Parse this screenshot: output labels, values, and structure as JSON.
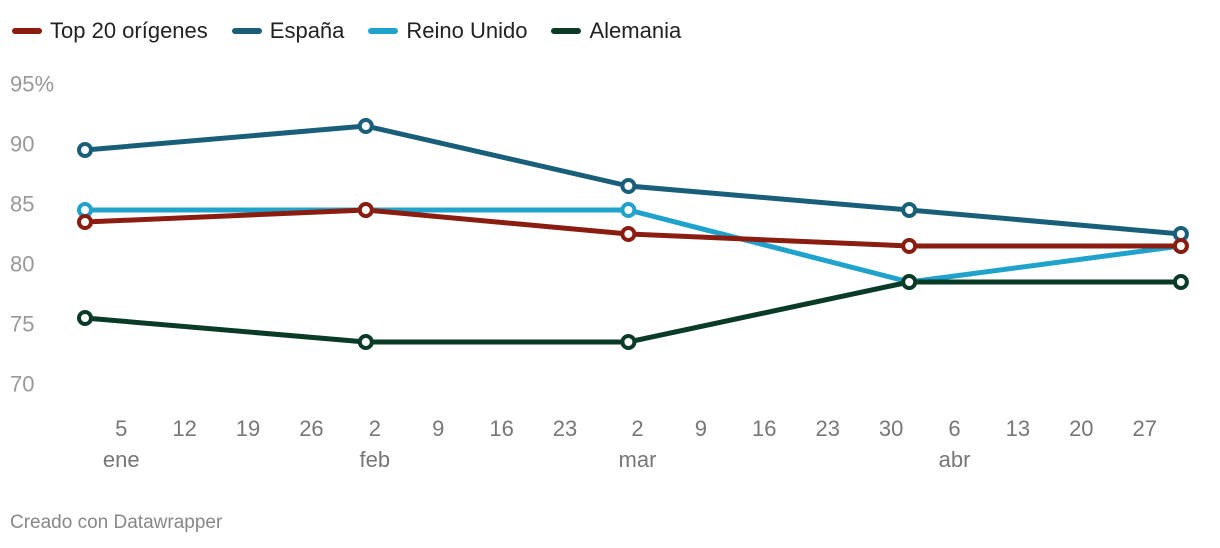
{
  "chart_data": {
    "type": "line",
    "xlabel": "",
    "ylabel": "",
    "ylim": [
      70,
      95
    ],
    "y_ticks": [
      95,
      90,
      85,
      80,
      75,
      70
    ],
    "y_tick_labels": [
      "95%",
      "90",
      "85",
      "80",
      "75",
      "70"
    ],
    "x_range": [
      "2020-01-01",
      "2020-05-02"
    ],
    "x_ticks": [
      {
        "date": "2020-01-05",
        "label": "5"
      },
      {
        "date": "2020-01-12",
        "label": "12"
      },
      {
        "date": "2020-01-19",
        "label": "19"
      },
      {
        "date": "2020-01-26",
        "label": "26"
      },
      {
        "date": "2020-02-02",
        "label": "2"
      },
      {
        "date": "2020-02-09",
        "label": "9"
      },
      {
        "date": "2020-02-16",
        "label": "16"
      },
      {
        "date": "2020-02-23",
        "label": "23"
      },
      {
        "date": "2020-03-02",
        "label": "2"
      },
      {
        "date": "2020-03-09",
        "label": "9"
      },
      {
        "date": "2020-03-16",
        "label": "16"
      },
      {
        "date": "2020-03-23",
        "label": "23"
      },
      {
        "date": "2020-03-30",
        "label": "30"
      },
      {
        "date": "2020-04-06",
        "label": "6"
      },
      {
        "date": "2020-04-13",
        "label": "13"
      },
      {
        "date": "2020-04-20",
        "label": "20"
      },
      {
        "date": "2020-04-27",
        "label": "27"
      }
    ],
    "month_labels": [
      {
        "date": "2020-01-05",
        "label": "ene"
      },
      {
        "date": "2020-02-02",
        "label": "feb"
      },
      {
        "date": "2020-03-02",
        "label": "mar"
      },
      {
        "date": "2020-04-06",
        "label": "abr"
      }
    ],
    "x": [
      "2020-01-01",
      "2020-02-01",
      "2020-03-01",
      "2020-04-01",
      "2020-05-01"
    ],
    "grid": false,
    "legend_position": "top-left",
    "series": [
      {
        "name": "Top 20 orígenes",
        "color": "#8a1c10",
        "values": [
          83.5,
          84.5,
          82.5,
          81.5,
          81.5
        ]
      },
      {
        "name": "España",
        "color": "#1a5f7a",
        "values": [
          89.5,
          91.5,
          86.5,
          84.5,
          82.5
        ]
      },
      {
        "name": "Reino Unido",
        "color": "#1fa3cc",
        "values": [
          84.5,
          84.5,
          84.5,
          78.5,
          81.5
        ]
      },
      {
        "name": "Alemania",
        "color": "#0a3b26",
        "values": [
          75.5,
          73.5,
          73.5,
          78.5,
          78.5
        ]
      }
    ]
  },
  "footer": {
    "credit": "Creado con Datawrapper"
  }
}
